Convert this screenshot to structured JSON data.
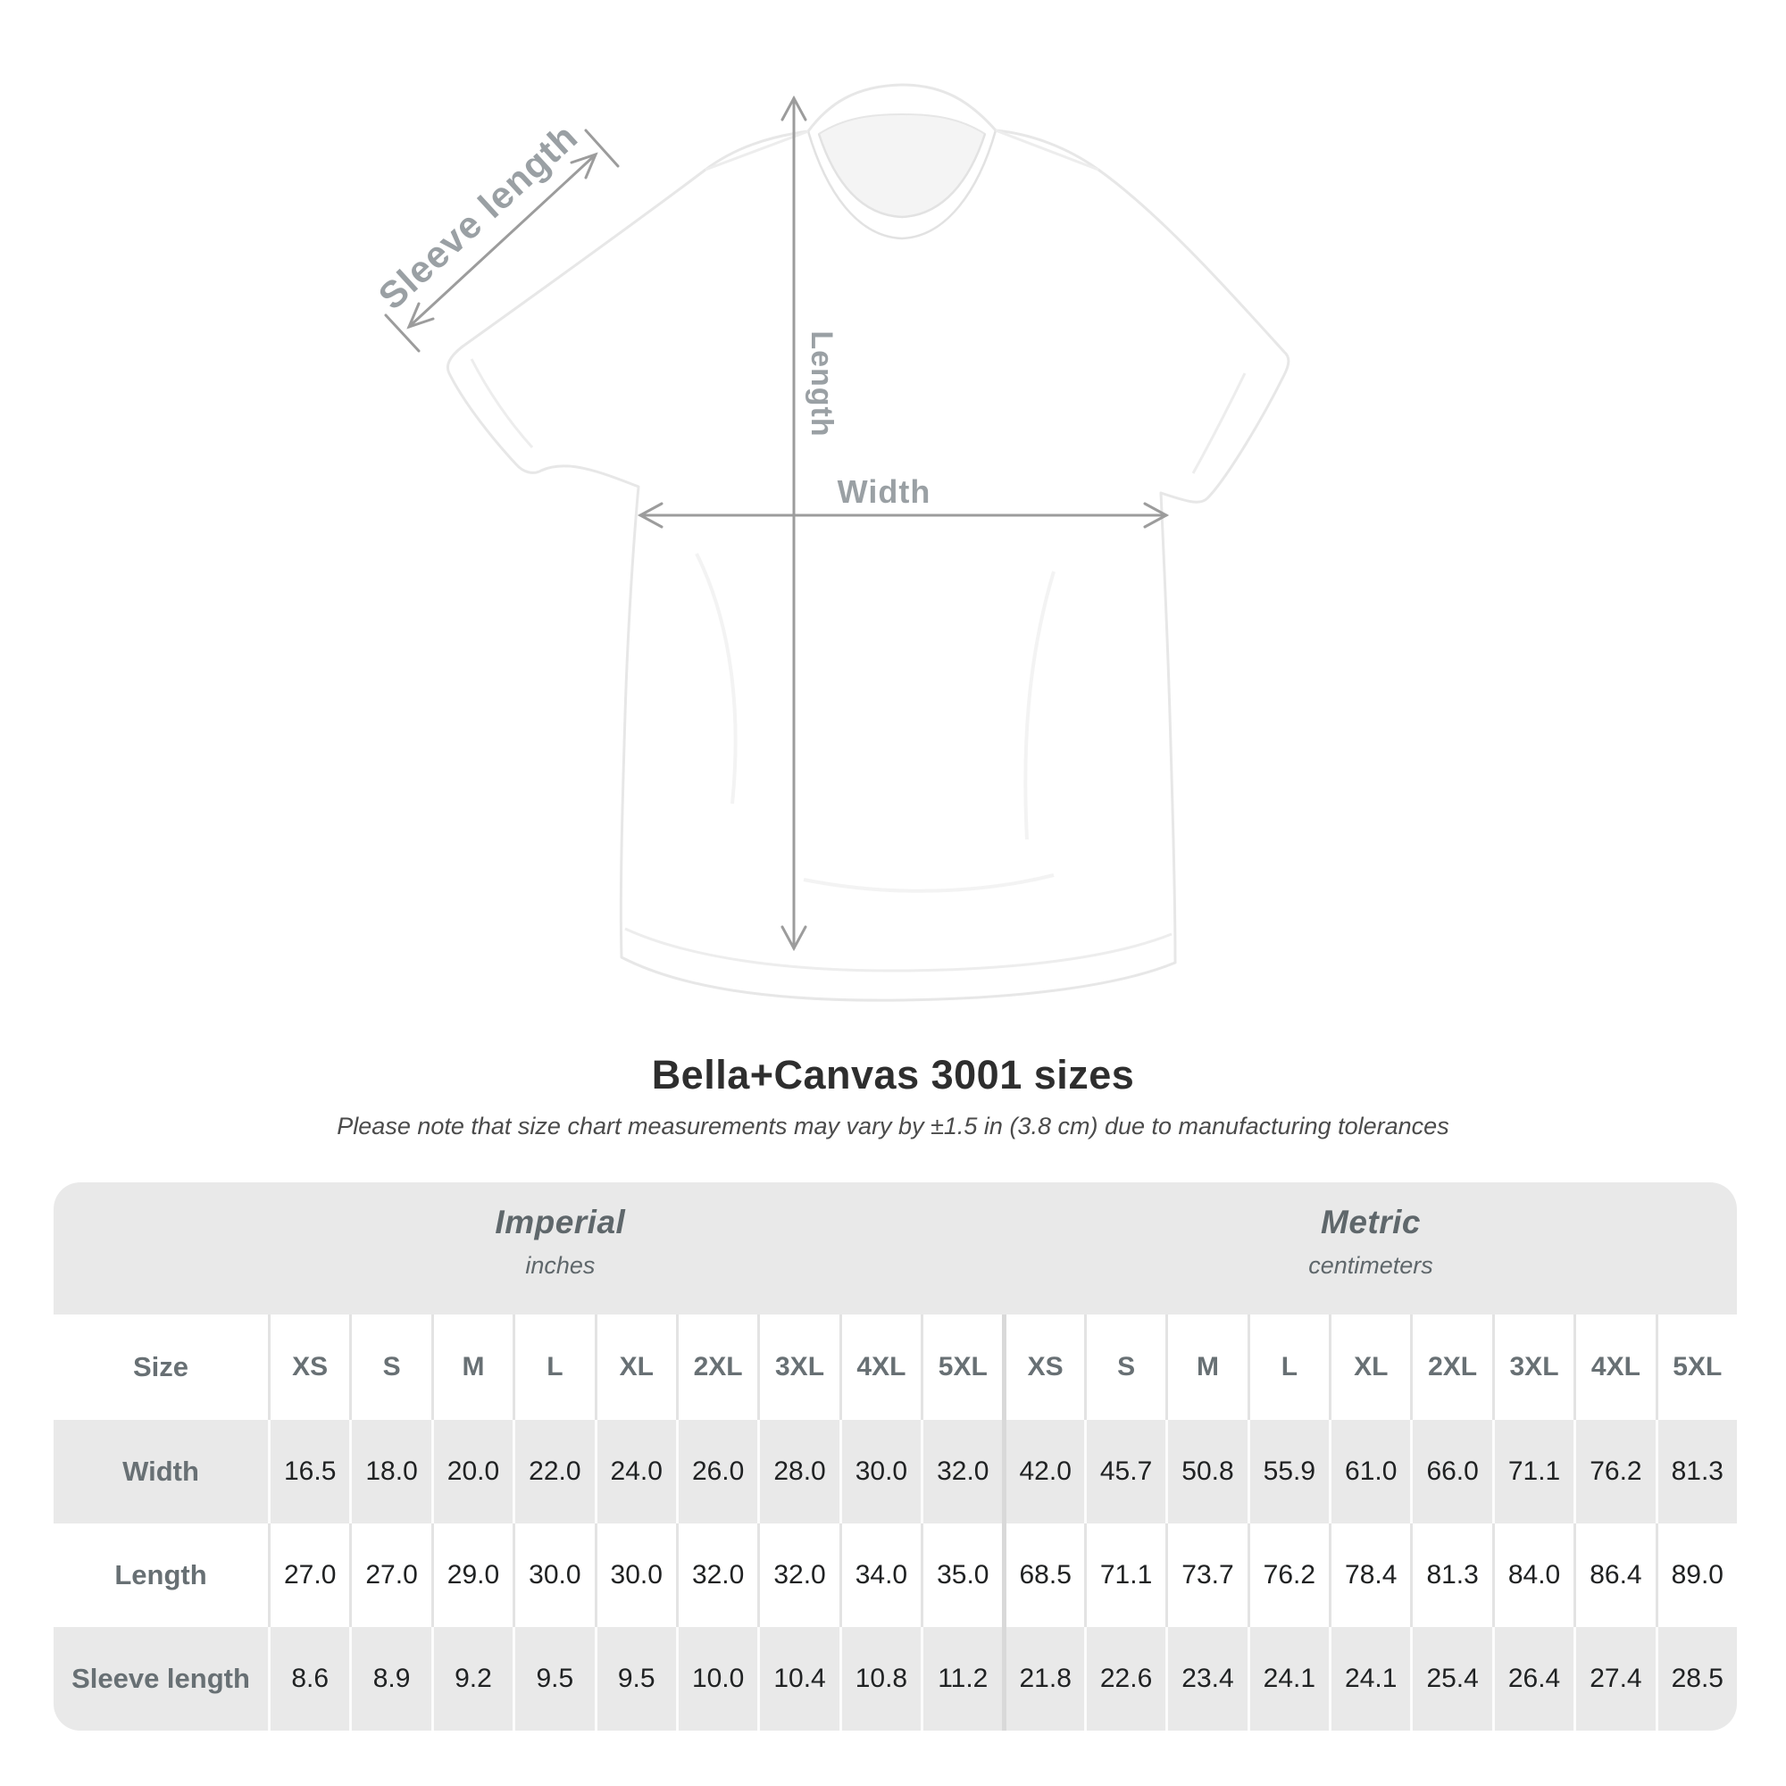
{
  "diagram": {
    "sleeve_label": "Sleeve length",
    "length_label": "Length",
    "width_label": "Width"
  },
  "title": "Bella+Canvas 3001 sizes",
  "subtitle": "Please note that size chart measurements may vary by ±1.5 in (3.8 cm) due to manufacturing tolerances",
  "table": {
    "corner_label": "Size",
    "sections": [
      {
        "name": "Imperial",
        "unit": "inches"
      },
      {
        "name": "Metric",
        "unit": "centimeters"
      }
    ],
    "sizes": [
      "XS",
      "S",
      "M",
      "L",
      "XL",
      "2XL",
      "3XL",
      "4XL",
      "5XL"
    ],
    "rows": [
      {
        "label": "Width",
        "imperial": [
          "16.5",
          "18.0",
          "20.0",
          "22.0",
          "24.0",
          "26.0",
          "28.0",
          "30.0",
          "32.0"
        ],
        "metric": [
          "42.0",
          "45.7",
          "50.8",
          "55.9",
          "61.0",
          "66.0",
          "71.1",
          "76.2",
          "81.3"
        ]
      },
      {
        "label": "Length",
        "imperial": [
          "27.0",
          "27.0",
          "29.0",
          "30.0",
          "30.0",
          "32.0",
          "32.0",
          "34.0",
          "35.0"
        ],
        "metric": [
          "68.5",
          "71.1",
          "73.7",
          "76.2",
          "78.4",
          "81.3",
          "84.0",
          "86.4",
          "89.0"
        ]
      },
      {
        "label": "Sleeve length",
        "imperial": [
          "8.6",
          "8.9",
          "9.2",
          "9.5",
          "9.5",
          "10.0",
          "10.4",
          "10.8",
          "11.2"
        ],
        "metric": [
          "21.8",
          "22.6",
          "23.4",
          "24.1",
          "24.1",
          "25.4",
          "26.4",
          "27.4",
          "28.5"
        ]
      }
    ]
  },
  "colors": {
    "stripe_gray": "#e9e9e9",
    "thick_divider": "#d9d9d9",
    "annotation_gray": "#9aa0a4",
    "number_text": "#202223",
    "label_text": "#687074"
  },
  "chart_data": {
    "type": "table",
    "title": "Bella+Canvas 3001 sizes",
    "note": "Measurements may vary by ±1.5 in (3.8 cm) due to manufacturing tolerances",
    "sections": [
      "Imperial (inches)",
      "Metric (centimeters)"
    ],
    "sizes": [
      "XS",
      "S",
      "M",
      "L",
      "XL",
      "2XL",
      "3XL",
      "4XL",
      "5XL"
    ],
    "rows": [
      {
        "label": "Width",
        "imperial_in": [
          16.5,
          18.0,
          20.0,
          22.0,
          24.0,
          26.0,
          28.0,
          30.0,
          32.0
        ],
        "metric_cm": [
          42.0,
          45.7,
          50.8,
          55.9,
          61.0,
          66.0,
          71.1,
          76.2,
          81.3
        ]
      },
      {
        "label": "Length",
        "imperial_in": [
          27.0,
          27.0,
          29.0,
          30.0,
          30.0,
          32.0,
          32.0,
          34.0,
          35.0
        ],
        "metric_cm": [
          68.5,
          71.1,
          73.7,
          76.2,
          78.4,
          81.3,
          84.0,
          86.4,
          89.0
        ]
      },
      {
        "label": "Sleeve length",
        "imperial_in": [
          8.6,
          8.9,
          9.2,
          9.5,
          9.5,
          10.0,
          10.4,
          10.8,
          11.2
        ],
        "metric_cm": [
          21.8,
          22.6,
          23.4,
          24.1,
          24.1,
          25.4,
          26.4,
          27.4,
          28.5
        ]
      }
    ]
  }
}
